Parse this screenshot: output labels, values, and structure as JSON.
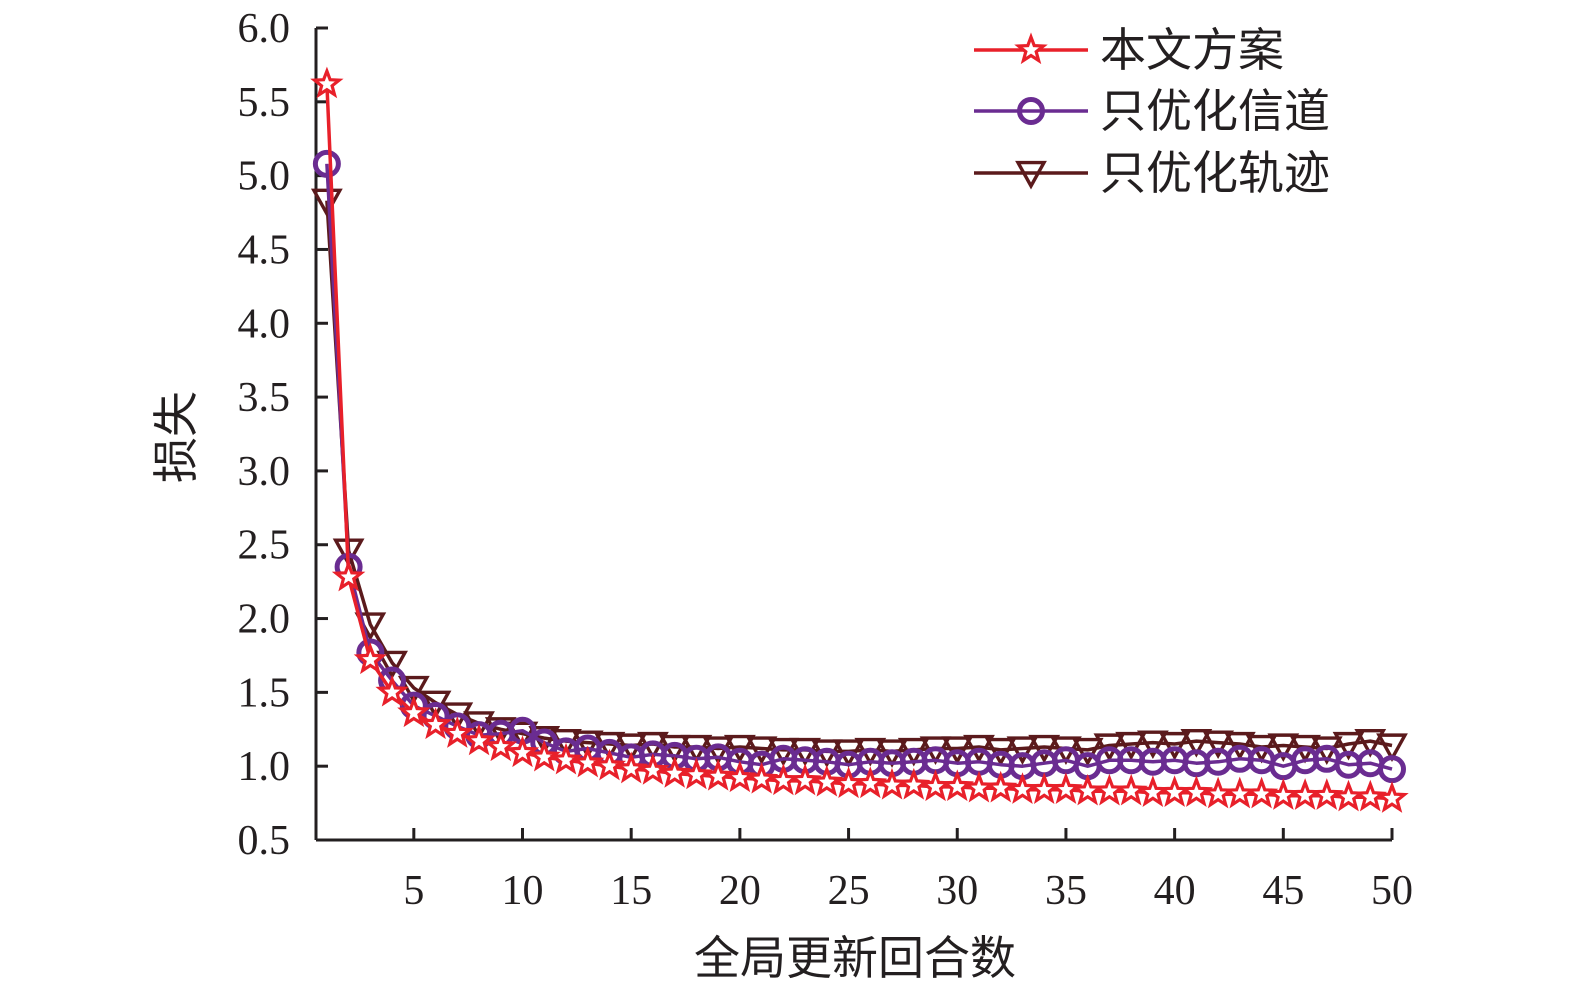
{
  "chart_data": {
    "type": "line",
    "title": "",
    "xlabel": "全局更新回合数",
    "ylabel": "损失",
    "xlim": [
      0.5,
      50
    ],
    "ylim": [
      0.5,
      6.0
    ],
    "xticks": [
      5,
      10,
      15,
      20,
      25,
      30,
      35,
      40,
      45,
      50
    ],
    "xtick_labels": [
      "5",
      "10",
      "15",
      "20",
      "25",
      "30",
      "35",
      "40",
      "45",
      "50"
    ],
    "yticks": [
      0.5,
      1.0,
      1.5,
      2.0,
      2.5,
      3.0,
      3.5,
      4.0,
      4.5,
      5.0,
      5.5,
      6.0
    ],
    "ytick_labels": [
      "0.5",
      "1.0",
      "1.5",
      "2.0",
      "2.5",
      "3.0",
      "3.5",
      "4.0",
      "4.5",
      "5.0",
      "5.5",
      "6.0"
    ],
    "grid": false,
    "legend_position": "top-right",
    "x": [
      1,
      2,
      3,
      4,
      5,
      6,
      7,
      8,
      9,
      10,
      11,
      12,
      13,
      14,
      15,
      16,
      17,
      18,
      19,
      20,
      21,
      22,
      23,
      24,
      25,
      26,
      27,
      28,
      29,
      30,
      31,
      32,
      33,
      34,
      35,
      36,
      37,
      38,
      39,
      40,
      41,
      42,
      43,
      44,
      45,
      46,
      47,
      48,
      49,
      50
    ],
    "series": [
      {
        "name": "本文方案",
        "color": "#e8202a",
        "marker": "star",
        "values": [
          5.62,
          2.28,
          1.72,
          1.5,
          1.36,
          1.28,
          1.22,
          1.17,
          1.13,
          1.09,
          1.06,
          1.04,
          1.02,
          1.0,
          0.98,
          0.97,
          0.95,
          0.94,
          0.93,
          0.92,
          0.91,
          0.9,
          0.9,
          0.89,
          0.88,
          0.88,
          0.87,
          0.87,
          0.86,
          0.86,
          0.85,
          0.85,
          0.84,
          0.84,
          0.84,
          0.83,
          0.83,
          0.83,
          0.82,
          0.82,
          0.82,
          0.81,
          0.81,
          0.81,
          0.8,
          0.8,
          0.8,
          0.79,
          0.79,
          0.78
        ]
      },
      {
        "name": "只优化信道",
        "color": "#6a2c91",
        "marker": "circle",
        "values": [
          5.08,
          2.35,
          1.77,
          1.58,
          1.41,
          1.34,
          1.27,
          1.21,
          1.22,
          1.24,
          1.16,
          1.1,
          1.12,
          1.09,
          1.06,
          1.08,
          1.07,
          1.05,
          1.06,
          1.03,
          1.01,
          1.05,
          1.04,
          1.03,
          1.01,
          1.03,
          1.02,
          1.03,
          1.04,
          1.02,
          1.03,
          1.01,
          1.0,
          1.02,
          1.04,
          1.0,
          1.04,
          1.04,
          1.03,
          1.04,
          1.02,
          1.03,
          1.05,
          1.04,
          1.0,
          1.04,
          1.05,
          1.01,
          1.02,
          0.98
        ]
      },
      {
        "name": "只优化轨迹",
        "color": "#5b1a1c",
        "marker": "triangle-down",
        "values": [
          4.83,
          2.46,
          1.96,
          1.7,
          1.53,
          1.43,
          1.35,
          1.29,
          1.25,
          1.22,
          1.19,
          1.17,
          1.16,
          1.15,
          1.14,
          1.15,
          1.13,
          1.13,
          1.12,
          1.13,
          1.12,
          1.11,
          1.11,
          1.1,
          1.1,
          1.11,
          1.1,
          1.11,
          1.12,
          1.12,
          1.13,
          1.11,
          1.12,
          1.13,
          1.12,
          1.11,
          1.14,
          1.15,
          1.16,
          1.15,
          1.17,
          1.16,
          1.15,
          1.13,
          1.14,
          1.13,
          1.12,
          1.15,
          1.17,
          1.14
        ]
      }
    ]
  }
}
